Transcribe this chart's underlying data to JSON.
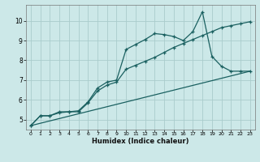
{
  "xlabel": "Humidex (Indice chaleur)",
  "bg_color": "#cce8e8",
  "grid_color": "#aacccc",
  "line_color": "#1a6060",
  "xlim": [
    -0.5,
    23.5
  ],
  "ylim": [
    4.5,
    10.8
  ],
  "yticks": [
    5,
    6,
    7,
    8,
    9,
    10
  ],
  "xticks": [
    0,
    1,
    2,
    3,
    4,
    5,
    6,
    7,
    8,
    9,
    10,
    11,
    12,
    13,
    14,
    15,
    16,
    17,
    18,
    19,
    20,
    21,
    22,
    23
  ],
  "series1_x": [
    0,
    1,
    2,
    3,
    4,
    5,
    6,
    7,
    8,
    9,
    10,
    11,
    12,
    13,
    14,
    15,
    16,
    17,
    18,
    19,
    20,
    21,
    22,
    23
  ],
  "series1_y": [
    4.7,
    5.2,
    5.2,
    5.4,
    5.4,
    5.45,
    5.9,
    6.6,
    6.9,
    7.0,
    8.55,
    8.8,
    9.05,
    9.35,
    9.3,
    9.2,
    9.0,
    9.45,
    10.45,
    8.2,
    7.7,
    7.45,
    7.45,
    7.45
  ],
  "series2_x": [
    0,
    1,
    2,
    3,
    4,
    5,
    6,
    7,
    8,
    9,
    10,
    11,
    12,
    13,
    14,
    15,
    16,
    17,
    18,
    19,
    20,
    21,
    22,
    23
  ],
  "series2_y": [
    4.7,
    5.2,
    5.2,
    5.35,
    5.4,
    5.4,
    5.85,
    6.45,
    6.75,
    6.9,
    7.55,
    7.75,
    7.95,
    8.15,
    8.4,
    8.65,
    8.85,
    9.05,
    9.25,
    9.45,
    9.65,
    9.75,
    9.85,
    9.95
  ],
  "series3_x": [
    0,
    23
  ],
  "series3_y": [
    4.7,
    7.45
  ]
}
